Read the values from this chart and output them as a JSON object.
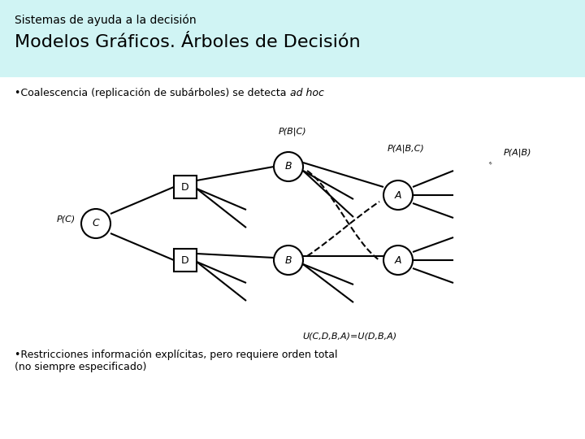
{
  "title_line1": "Sistemas de ayuda a la decisión",
  "title_line2": "Modelos Gráficos. Árboles de Decisión",
  "title_bg": "#d0f4f4",
  "bullet1_normal": "•Coalescencia (replicación de subárboles) se detecta ",
  "bullet1_italic": "ad hoc",
  "bullet2": "•Restricciones información explícitas, pero requiere orden total\n(no siempre especificado)",
  "bg_color": "#ffffff",
  "lw": 1.5,
  "label_PC": "P(C)",
  "label_PBC": "P(B|C)",
  "label_PABC": "P(A|B,C)",
  "label_PAB": "P(A|B)",
  "label_utility": "U(C,D,B,A)=U(D,B,A)"
}
